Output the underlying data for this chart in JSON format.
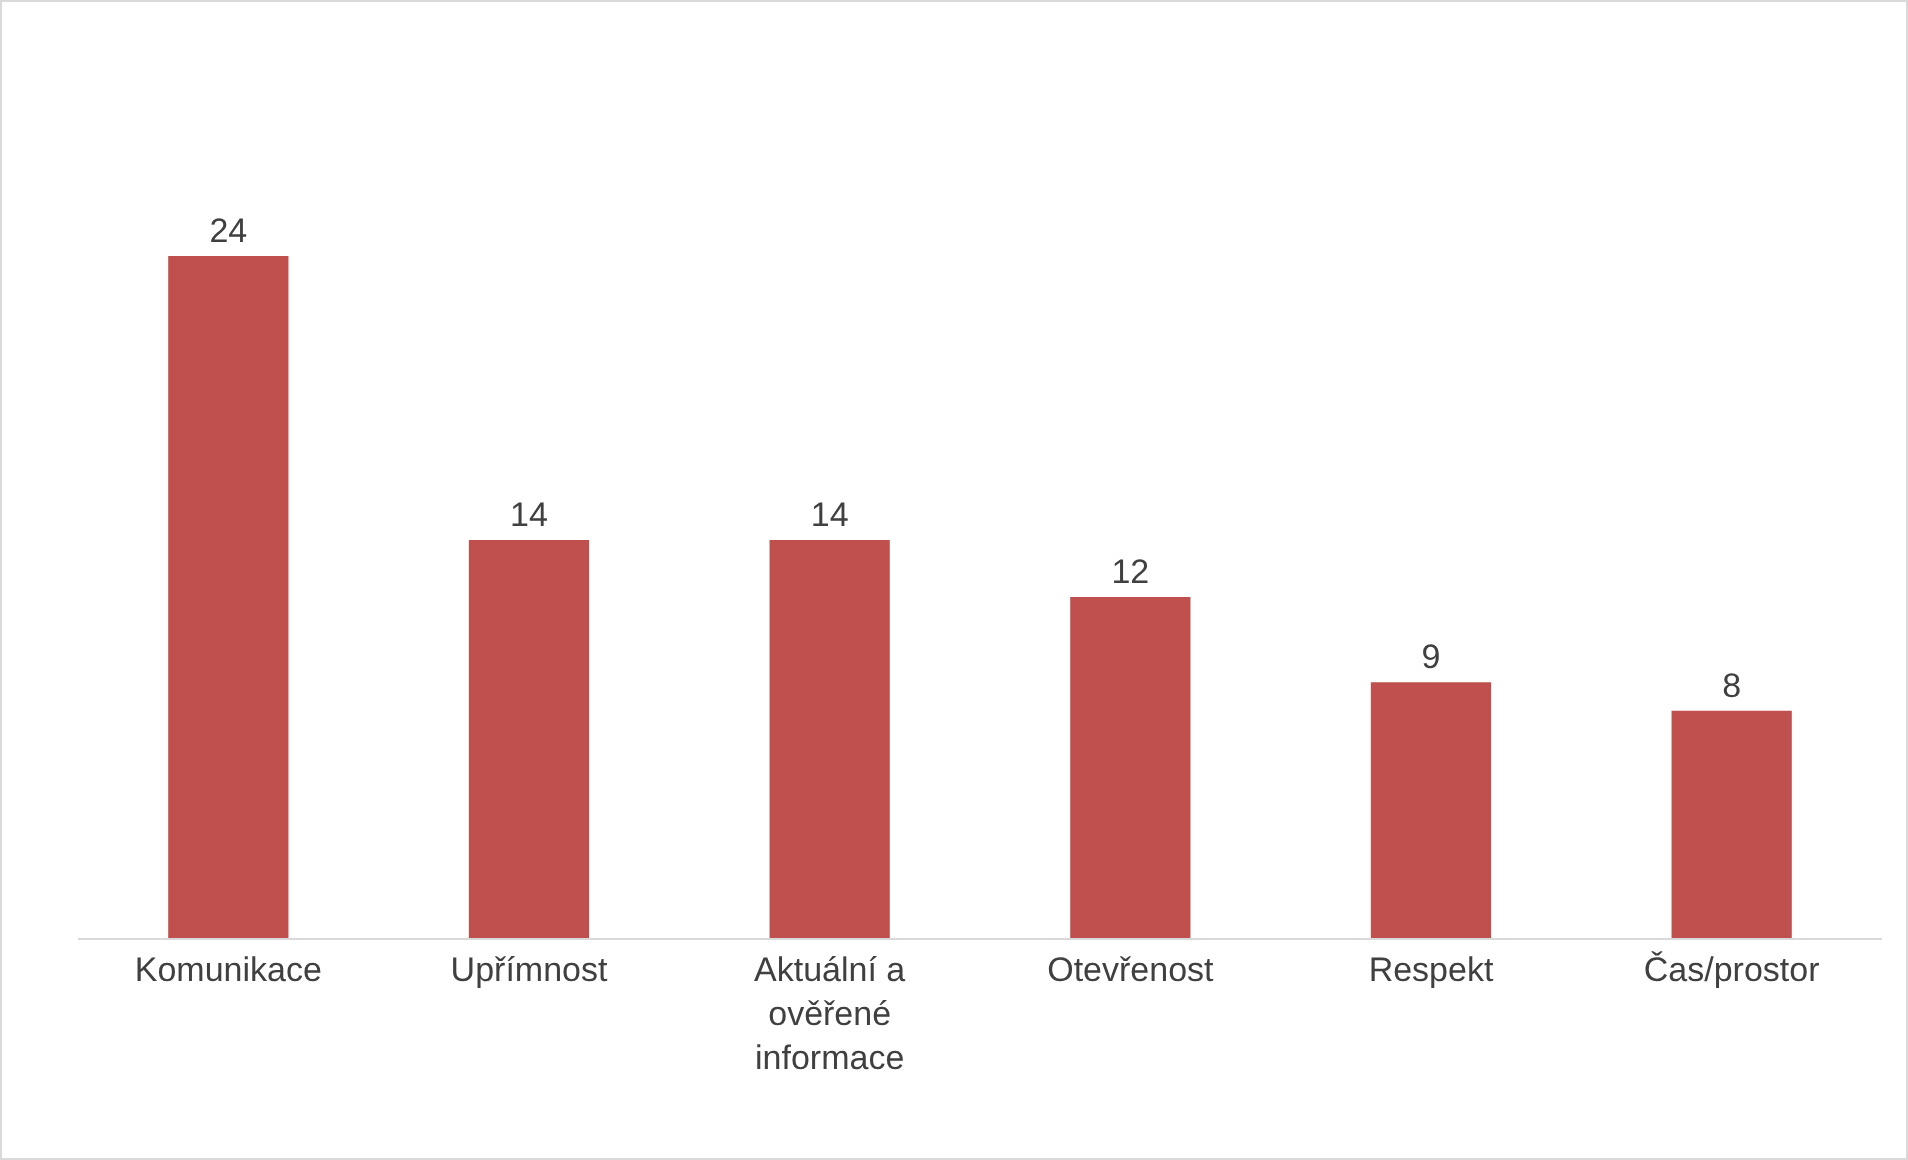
{
  "chart_data": {
    "type": "bar",
    "categories": [
      "Komunikace",
      "Upřímnost",
      "Aktuální a ověřené informace",
      "Otevřenost",
      "Respekt",
      "Čas/prostor"
    ],
    "values": [
      24,
      14,
      14,
      12,
      9,
      8
    ],
    "color": "#c0504d",
    "data_labels": true
  }
}
